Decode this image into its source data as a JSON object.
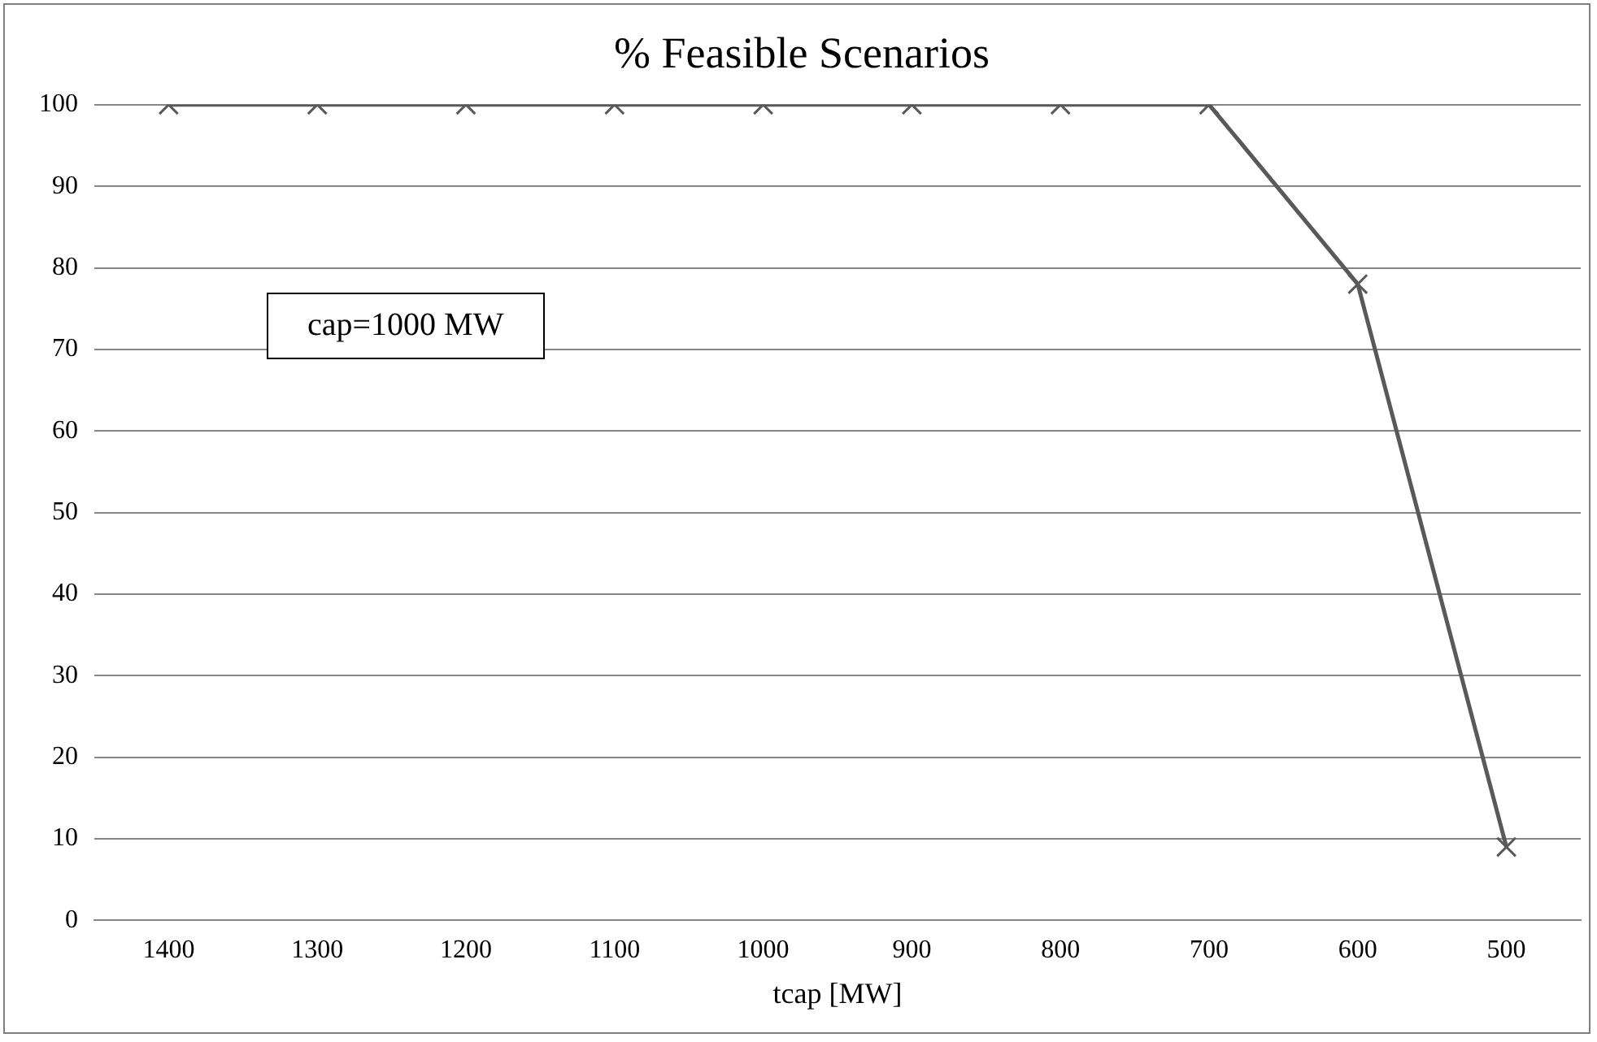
{
  "chart_data": {
    "type": "line",
    "title": "% Feasible Scenarios",
    "xlabel": "tcap [MW]",
    "categories": [
      "1400",
      "1300",
      "1200",
      "1100",
      "1000",
      "900",
      "800",
      "700",
      "600",
      "500"
    ],
    "series": [
      {
        "color": "#595959",
        "values": [
          100,
          100,
          100,
          100,
          100,
          100,
          100,
          100,
          78,
          9
        ]
      }
    ],
    "ylim": [
      0,
      100
    ],
    "yticks": [
      0,
      10,
      20,
      30,
      40,
      50,
      60,
      70,
      80,
      90,
      100
    ],
    "grid": "y",
    "legend": false,
    "marker": "cross",
    "line_style": "solid",
    "annotations": [
      "cap=1000 MW"
    ]
  }
}
